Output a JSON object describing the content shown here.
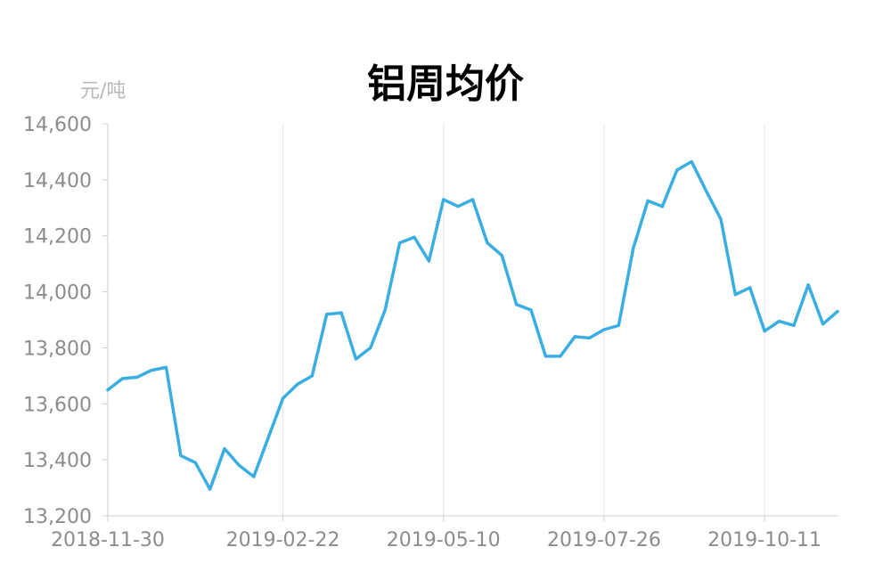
{
  "chart_data": {
    "type": "line",
    "title": "铝周均价",
    "ylabel": "元/吨",
    "xlabel": "",
    "ylim": [
      13200,
      14600
    ],
    "yticks": [
      13200,
      13400,
      13600,
      13800,
      14000,
      14200,
      14400,
      14600
    ],
    "ytick_labels": [
      "13,200",
      "13,400",
      "13,600",
      "13,800",
      "14,000",
      "14,200",
      "14,400",
      "14,600"
    ],
    "xtick_labels": [
      "2018-11-30",
      "2019-02-22",
      "2019-05-10",
      "2019-07-26",
      "2019-10-11"
    ],
    "xtick_index": [
      0,
      12,
      23,
      34,
      45
    ],
    "grid": "vertical",
    "line_color": "#3aaee0",
    "grid_color": "#e4e4e4",
    "axis_color": "#cccccc",
    "series": [
      {
        "x": [
          "2018-11-30",
          "2018-12-07",
          "2018-12-14",
          "2018-12-21",
          "2018-12-28",
          "2019-01-04",
          "2019-01-11",
          "2019-01-18",
          "2019-01-25",
          "2019-02-01",
          "2019-02-08",
          "2019-02-15",
          "2019-02-22",
          "2019-03-01",
          "2019-03-08",
          "2019-03-15",
          "2019-03-22",
          "2019-03-29",
          "2019-04-05",
          "2019-04-12",
          "2019-04-19",
          "2019-04-26",
          "2019-05-03",
          "2019-05-10",
          "2019-05-17",
          "2019-05-24",
          "2019-05-31",
          "2019-06-07",
          "2019-06-14",
          "2019-06-21",
          "2019-06-28",
          "2019-07-05",
          "2019-07-12",
          "2019-07-19",
          "2019-07-26",
          "2019-08-02",
          "2019-08-09",
          "2019-08-16",
          "2019-08-23",
          "2019-08-30",
          "2019-09-06",
          "2019-09-13",
          "2019-09-20",
          "2019-09-27",
          "2019-10-04",
          "2019-10-11",
          "2019-10-18",
          "2019-10-25",
          "2019-11-01",
          "2019-11-08",
          "2019-11-15"
        ],
        "values": [
          13650,
          13690,
          13695,
          13720,
          13730,
          13415,
          13390,
          13295,
          13440,
          13380,
          13340,
          13480,
          13620,
          13670,
          13700,
          13920,
          13925,
          13760,
          13800,
          13935,
          14175,
          14195,
          14110,
          14330,
          14305,
          14330,
          14175,
          14130,
          13955,
          13935,
          13770,
          13770,
          13840,
          13835,
          13865,
          13880,
          14155,
          14325,
          14305,
          14435,
          14465,
          14360,
          14260,
          13990,
          14015,
          13860,
          13895,
          13880,
          14025,
          13885,
          13930
        ]
      }
    ]
  }
}
